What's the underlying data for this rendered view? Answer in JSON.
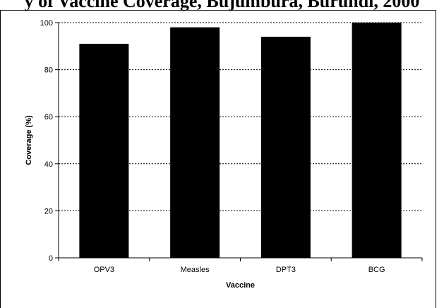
{
  "header_fragment": "y of Vaccine Coverage, Bujumbura, Burundi, 2000",
  "chart_data": {
    "type": "bar",
    "title": "",
    "xlabel": "Vaccine",
    "ylabel": "Coverage (%)",
    "categories": [
      "OPV3",
      "Measles",
      "DPT3",
      "BCG"
    ],
    "values": [
      91,
      98,
      94,
      100
    ],
    "ylim": [
      0,
      100
    ],
    "yticks": [
      "0",
      "20",
      "40",
      "60",
      "80",
      "100"
    ],
    "grid": true,
    "bar_color": "#000000"
  }
}
